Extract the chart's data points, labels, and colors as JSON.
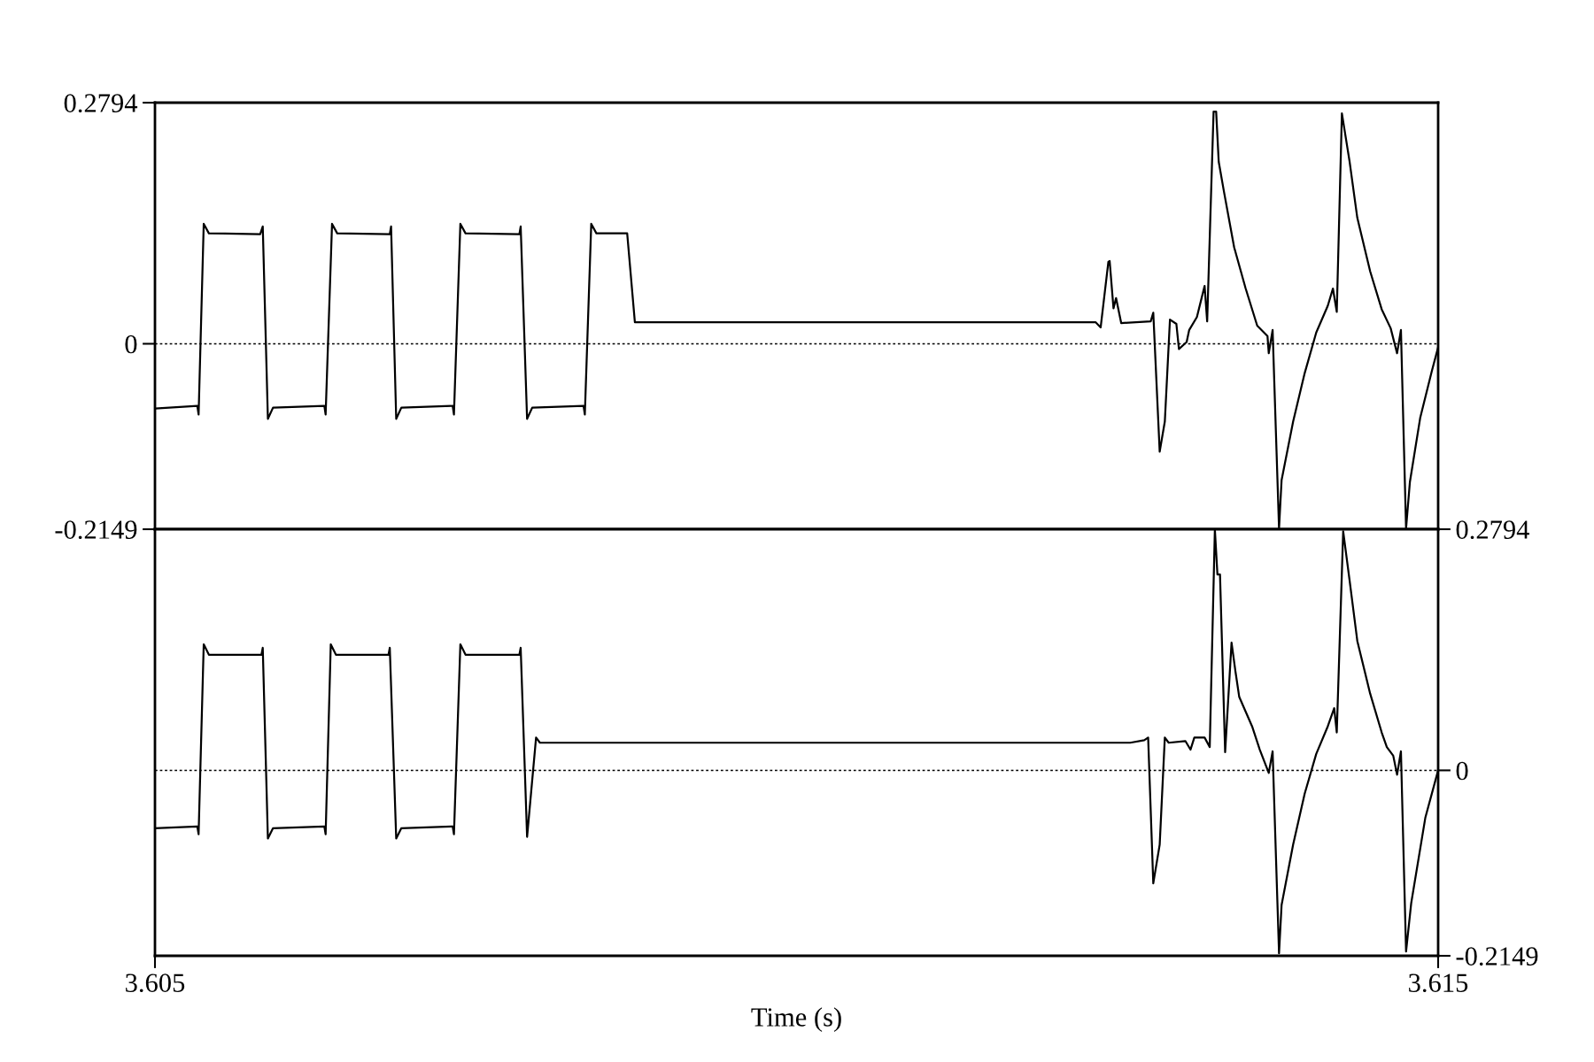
{
  "chart_data": [
    {
      "type": "line",
      "xlim": [
        3.605,
        3.615
      ],
      "ylim": [
        -0.2149,
        0.2794
      ],
      "yticks": [
        0.2794,
        0,
        -0.2149
      ],
      "tick_labels": "y",
      "grid": false,
      "line_style": "solid",
      "ref_lines": [
        {
          "axis": "y",
          "value": 0,
          "label": null,
          "color": "#000000",
          "line_style": "dotted"
        }
      ],
      "series": [
        {
          "color": "#000000",
          "x": [
            3.605,
            3.60533,
            3.60534,
            3.60538,
            3.60542,
            3.60582,
            3.60584,
            3.60588,
            3.60592,
            3.60632,
            3.60633,
            3.60638,
            3.60642,
            3.60683,
            3.60684,
            3.60688,
            3.60692,
            3.60732,
            3.60733,
            3.60738,
            3.60742,
            3.60784,
            3.60785,
            3.6079,
            3.60794,
            3.60834,
            3.60835,
            3.6084,
            3.60844,
            3.60868,
            3.60874,
            3.61233,
            3.61237,
            3.61243,
            3.61244,
            3.61247,
            3.61249,
            3.61253,
            3.61276,
            3.61278,
            3.61283,
            3.61287,
            3.61291,
            3.61296,
            3.61298,
            3.61304,
            3.61306,
            3.61312,
            3.61318,
            3.6132,
            3.61325,
            3.61327,
            3.61329,
            3.61333,
            3.61341,
            3.6135,
            3.61359,
            3.61367,
            3.61368,
            3.61371,
            3.61376,
            3.61378,
            3.61387,
            3.61396,
            3.61405,
            3.61414,
            3.61418,
            3.61421,
            3.61425,
            3.61431,
            3.61437,
            3.61447,
            3.61456,
            3.61463,
            3.61468,
            3.61471,
            3.61475,
            3.61478,
            3.61486,
            3.61495,
            3.615
          ],
          "values": [
            -0.075,
            -0.072,
            -0.082,
            0.139,
            0.128,
            0.127,
            0.136,
            -0.087,
            -0.074,
            -0.072,
            -0.082,
            0.139,
            0.128,
            0.127,
            0.136,
            -0.087,
            -0.074,
            -0.072,
            -0.082,
            0.139,
            0.128,
            0.127,
            0.136,
            -0.087,
            -0.074,
            -0.072,
            -0.082,
            0.139,
            0.128,
            0.128,
            0.025,
            0.025,
            0.019,
            0.095,
            0.096,
            0.041,
            0.053,
            0.024,
            0.026,
            0.036,
            -0.125,
            -0.09,
            0.028,
            0.023,
            -0.006,
            0.002,
            0.016,
            0.031,
            0.067,
            0.026,
            0.269,
            0.269,
            0.211,
            0.177,
            0.112,
            0.064,
            0.021,
            0.009,
            -0.011,
            0.016,
            -0.214,
            -0.158,
            -0.09,
            -0.034,
            0.013,
            0.044,
            0.064,
            0.037,
            0.267,
            0.211,
            0.146,
            0.084,
            0.04,
            0.018,
            -0.011,
            0.016,
            -0.214,
            -0.16,
            -0.086,
            -0.032,
            -0.004
          ]
        }
      ]
    },
    {
      "type": "line",
      "xlabel": "Time (s)",
      "xlim": [
        3.605,
        3.615
      ],
      "xticks": [
        3.605,
        3.615
      ],
      "y2lim": [
        -0.2149,
        0.2794
      ],
      "y2ticks": [
        0.2794,
        0,
        -0.2149
      ],
      "grid": false,
      "line_style": "solid",
      "ref_lines": [
        {
          "axis": "y2",
          "value": 0,
          "label": null,
          "color": "#000000",
          "line_style": "dotted"
        }
      ],
      "series": [
        {
          "color": "#000000",
          "axis": "y2",
          "x": [
            3.605,
            3.60533,
            3.60534,
            3.60538,
            3.60542,
            3.60583,
            3.60584,
            3.60588,
            3.60592,
            3.60632,
            3.60633,
            3.60637,
            3.60641,
            3.60682,
            3.60683,
            3.60688,
            3.60692,
            3.60732,
            3.60733,
            3.60738,
            3.60742,
            3.60784,
            3.60785,
            3.6079,
            3.60797,
            3.608,
            3.61207,
            3.6126,
            3.61271,
            3.61274,
            3.61278,
            3.61283,
            3.61287,
            3.6129,
            3.61303,
            3.61307,
            3.6131,
            3.61318,
            3.61322,
            3.61326,
            3.61328,
            3.6133,
            3.61334,
            3.61339,
            3.61342,
            3.61345,
            3.61355,
            3.61361,
            3.61368,
            3.61371,
            3.61376,
            3.61378,
            3.61387,
            3.61396,
            3.61405,
            3.61414,
            3.61419,
            3.61421,
            3.61426,
            3.61431,
            3.61437,
            3.61447,
            3.61456,
            3.6146,
            3.61465,
            3.61468,
            3.61471,
            3.61475,
            3.61479,
            3.6149,
            3.615
          ],
          "values": [
            -0.067,
            -0.065,
            -0.074,
            0.146,
            0.134,
            0.134,
            0.142,
            -0.079,
            -0.067,
            -0.065,
            -0.074,
            0.146,
            0.134,
            0.134,
            0.142,
            -0.079,
            -0.067,
            -0.065,
            -0.074,
            0.146,
            0.134,
            0.134,
            0.142,
            -0.077,
            0.038,
            0.032,
            0.032,
            0.032,
            0.035,
            0.038,
            -0.131,
            -0.086,
            0.038,
            0.032,
            0.034,
            0.024,
            0.038,
            0.038,
            0.027,
            0.279,
            0.227,
            0.227,
            0.021,
            0.148,
            0.115,
            0.085,
            0.051,
            0.024,
            -0.003,
            0.022,
            -0.212,
            -0.156,
            -0.086,
            -0.027,
            0.019,
            0.051,
            0.072,
            0.044,
            0.277,
            0.22,
            0.15,
            0.089,
            0.044,
            0.027,
            0.017,
            -0.005,
            0.022,
            -0.21,
            -0.154,
            -0.055,
            0
          ]
        }
      ]
    }
  ]
}
